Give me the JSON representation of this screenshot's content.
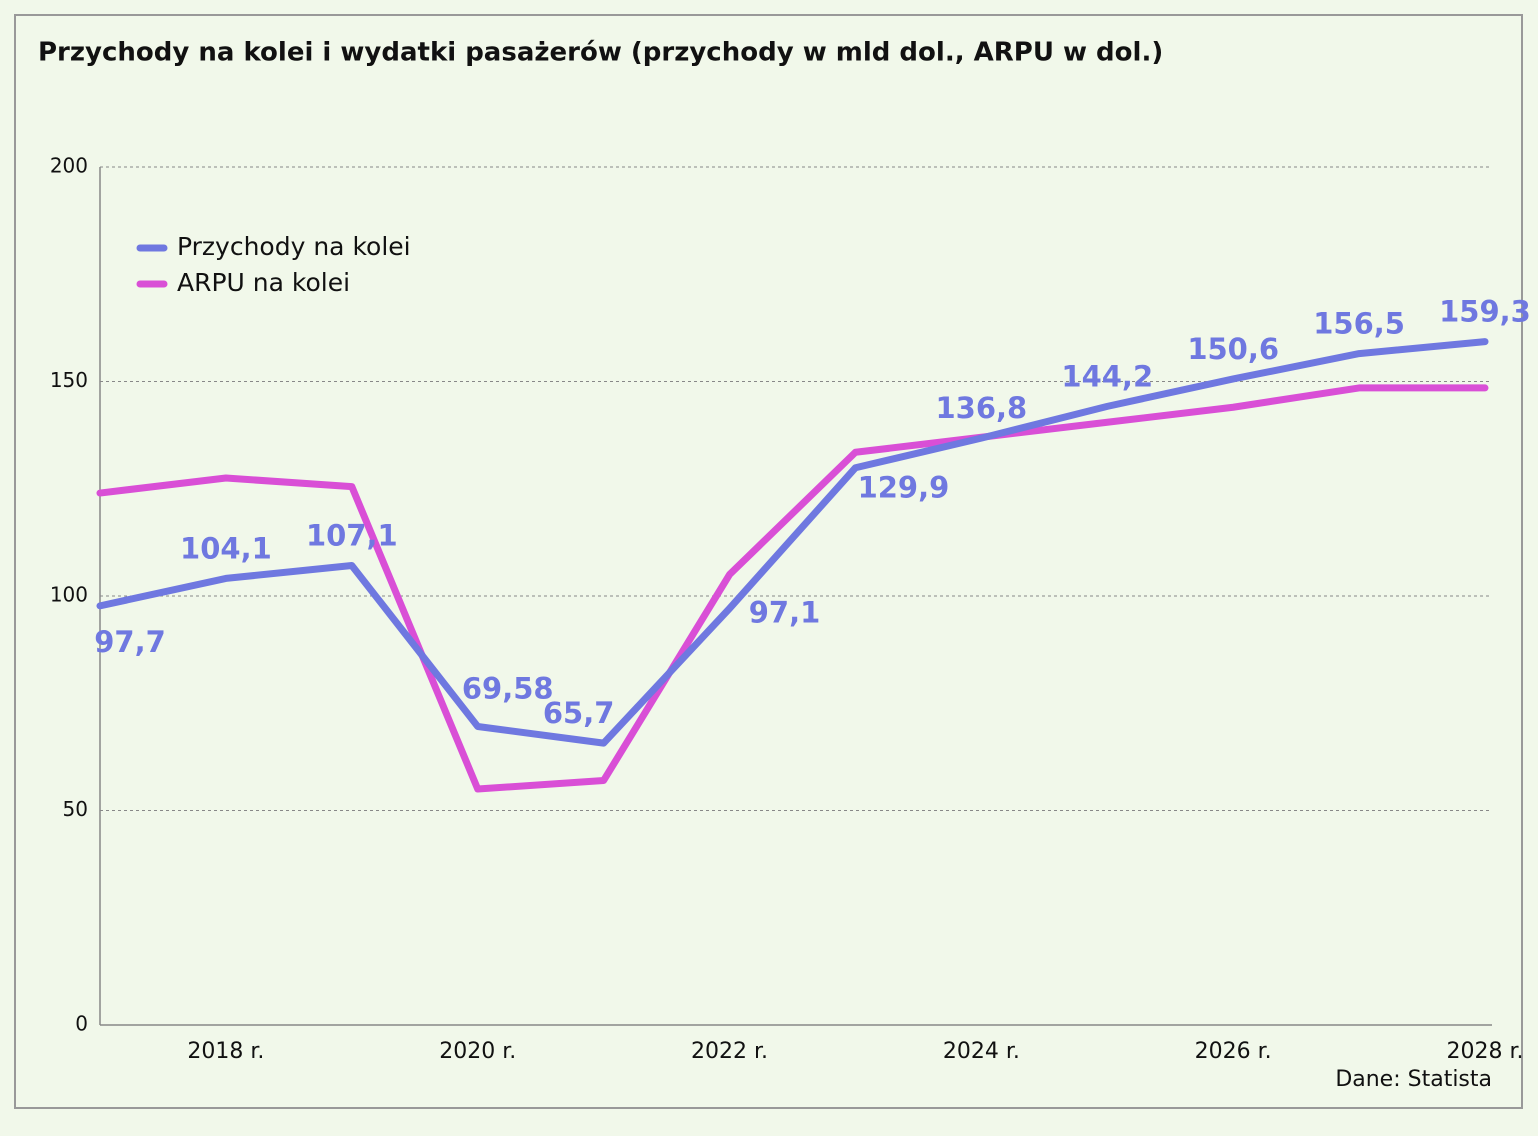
{
  "chart_data": {
    "type": "line",
    "title": "Przychody na kolei i wydatki pasażerów (przychody w mld dol., ARPU w dol.)",
    "source": "Dane: Statista",
    "categories": [
      null,
      "2018 r.",
      null,
      "2020 r.",
      null,
      "2022 r.",
      null,
      "2024 r.",
      null,
      "2026 r.",
      null,
      "2028 r."
    ],
    "series": [
      {
        "name": "Przychody na kolei",
        "color": "#6f78e0",
        "values": [
          97.7,
          104.1,
          107.1,
          69.58,
          65.7,
          97.1,
          129.9,
          136.8,
          144.2,
          150.6,
          156.5,
          159.3
        ],
        "value_labels": [
          "97,7",
          "104,1",
          "107,1",
          "69,58",
          "65,7",
          "97,1",
          "129,9",
          "136,8",
          "144,2",
          "150,6",
          "156,5",
          "159,3"
        ]
      },
      {
        "name": "ARPU na kolei",
        "color": "#d94fd6",
        "values": [
          124,
          127.5,
          125.5,
          55,
          57,
          105,
          133.5,
          137,
          140.5,
          144,
          148.5,
          148.5
        ]
      }
    ],
    "ylim": [
      0,
      200
    ],
    "yticks": [
      0,
      50,
      100,
      150,
      200
    ],
    "grid": true,
    "legend": "upper left"
  }
}
